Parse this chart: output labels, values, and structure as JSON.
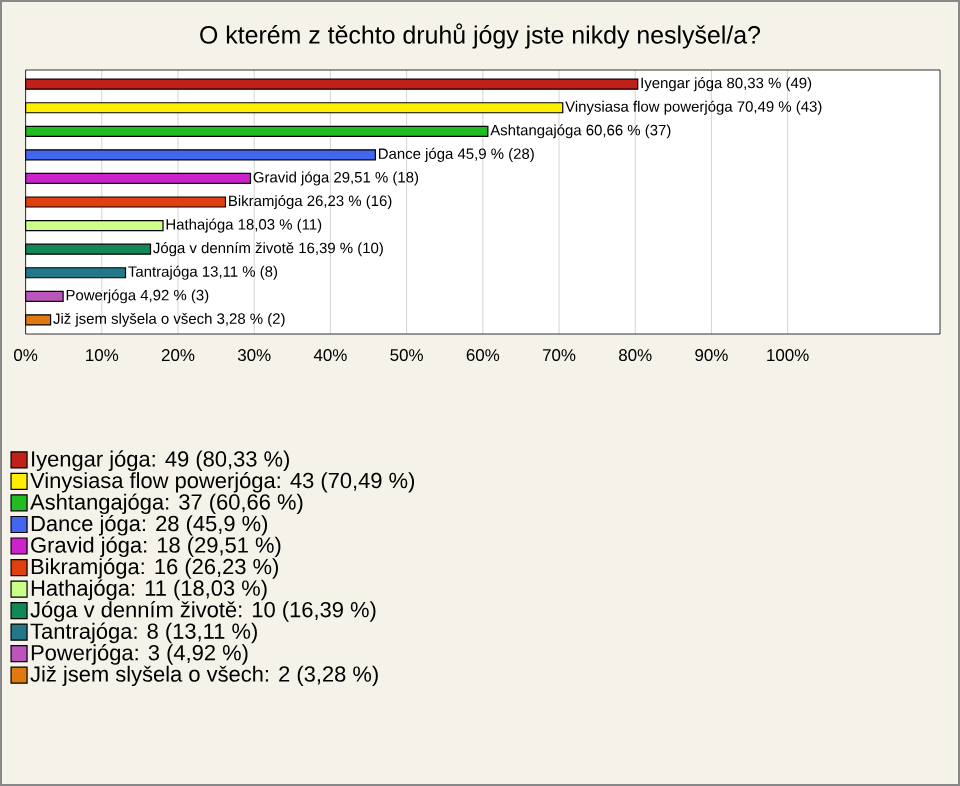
{
  "chart_data": {
    "type": "bar",
    "orientation": "horizontal",
    "title": "O kterém z těchto druhů jógy jste nikdy neslyšel/a?",
    "categories": [
      null,
      null,
      null,
      null,
      null,
      null,
      null,
      null,
      null,
      null,
      null
    ],
    "series": [
      {
        "name": "Iyengar jóga: 49 (80,33 %)",
        "color": "#c0201a",
        "values": [
          80.33,
          null,
          null,
          null,
          null,
          null,
          null,
          null,
          null,
          null,
          null
        ],
        "value_labels": [
          "Iyengar jóga 80,33 % (49)",
          null,
          null,
          null,
          null,
          null,
          null,
          null,
          null,
          null,
          null
        ]
      },
      {
        "name": "Vinysiasa flow powerjóga: 43 (70,49 %)",
        "color": "#ffee00",
        "values": [
          null,
          70.49,
          null,
          null,
          null,
          null,
          null,
          null,
          null,
          null,
          null
        ],
        "value_labels": [
          null,
          "Vinysiasa flow powerjóga 70,49 % (43)",
          null,
          null,
          null,
          null,
          null,
          null,
          null,
          null,
          null
        ]
      },
      {
        "name": "Ashtangajóga: 37 (60,66 %)",
        "color": "#22bb22",
        "values": [
          null,
          null,
          60.66,
          null,
          null,
          null,
          null,
          null,
          null,
          null,
          null
        ],
        "value_labels": [
          null,
          null,
          "Ashtangajóga 60,66 % (37)",
          null,
          null,
          null,
          null,
          null,
          null,
          null,
          null
        ]
      },
      {
        "name": "Dance jóga: 28 (45,9 %)",
        "color": "#4466ee",
        "values": [
          null,
          null,
          null,
          45.9,
          null,
          null,
          null,
          null,
          null,
          null,
          null
        ],
        "value_labels": [
          null,
          null,
          null,
          "Dance jóga 45,9 % (28)",
          null,
          null,
          null,
          null,
          null,
          null,
          null
        ]
      },
      {
        "name": "Gravid jóga: 18 (29,51 %)",
        "color": "#cc22cc",
        "values": [
          null,
          null,
          null,
          null,
          29.51,
          null,
          null,
          null,
          null,
          null,
          null
        ],
        "value_labels": [
          null,
          null,
          null,
          null,
          "Gravid jóga 29,51 % (18)",
          null,
          null,
          null,
          null,
          null,
          null
        ]
      },
      {
        "name": "Bikramjóga: 16 (26,23 %)",
        "color": "#e04010",
        "values": [
          null,
          null,
          null,
          null,
          null,
          26.23,
          null,
          null,
          null,
          null,
          null
        ],
        "value_labels": [
          null,
          null,
          null,
          null,
          null,
          "Bikramjóga 26,23 % (16)",
          null,
          null,
          null,
          null,
          null
        ]
      },
      {
        "name": "Hathajóga: 11 (18,03 %)",
        "color": "#ccff88",
        "values": [
          null,
          null,
          null,
          null,
          null,
          null,
          18.03,
          null,
          null,
          null,
          null
        ],
        "value_labels": [
          null,
          null,
          null,
          null,
          null,
          null,
          "Hathajóga 18,03 % (11)",
          null,
          null,
          null,
          null
        ]
      },
      {
        "name": "Jóga v denním životě: 10 (16,39 %)",
        "color": "#118855",
        "values": [
          null,
          null,
          null,
          null,
          null,
          null,
          null,
          16.39,
          null,
          null,
          null
        ],
        "value_labels": [
          null,
          null,
          null,
          null,
          null,
          null,
          null,
          "Jóga v denním životě 16,39 % (10)",
          null,
          null,
          null
        ]
      },
      {
        "name": "Tantrajóga: 8 (13,11 %)",
        "color": "#227788",
        "values": [
          null,
          null,
          null,
          null,
          null,
          null,
          null,
          null,
          13.11,
          null,
          null
        ],
        "value_labels": [
          null,
          null,
          null,
          null,
          null,
          null,
          null,
          null,
          "Tantrajóga 13,11 % (8)",
          null,
          null
        ]
      },
      {
        "name": "Powerjóga: 3 (4,92 %)",
        "color": "#bb55bb",
        "values": [
          null,
          null,
          null,
          null,
          null,
          null,
          null,
          null,
          null,
          4.92,
          null
        ],
        "value_labels": [
          null,
          null,
          null,
          null,
          null,
          null,
          null,
          null,
          null,
          "Powerjóga 4,92 % (3)",
          null
        ]
      },
      {
        "name": "Již jsem slyšela o všech: 2 (3,28 %)",
        "color": "#e07a10",
        "values": [
          null,
          null,
          null,
          null,
          null,
          null,
          null,
          null,
          null,
          null,
          3.28
        ],
        "value_labels": [
          null,
          null,
          null,
          null,
          null,
          null,
          null,
          null,
          null,
          null,
          "Již jsem slyšela o všech 3,28 % (2)"
        ]
      }
    ],
    "xlim": [
      0,
      120
    ],
    "xticks": [
      {
        "value": 0,
        "label": "0%"
      },
      {
        "value": 10,
        "label": "10%"
      },
      {
        "value": 20,
        "label": "20%"
      },
      {
        "value": 30,
        "label": "30%"
      },
      {
        "value": 40,
        "label": "40%"
      },
      {
        "value": 50,
        "label": "50%"
      },
      {
        "value": 60,
        "label": "60%"
      },
      {
        "value": 70,
        "label": "70%"
      },
      {
        "value": 80,
        "label": "80%"
      },
      {
        "value": 90,
        "label": "90%"
      },
      {
        "value": 100,
        "label": "100%"
      }
    ],
    "grid": "x",
    "legend": "bottom"
  }
}
